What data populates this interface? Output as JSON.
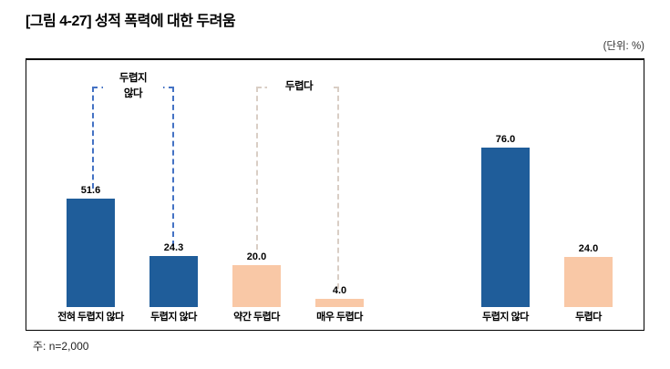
{
  "header": {
    "title": "[그림 4-27] 성적 폭력에 대한 두려움",
    "unit_label": "(단위: %)"
  },
  "footer": {
    "note": "주: n=2,000"
  },
  "colors": {
    "bar_blue": "#1F5D9A",
    "bar_peach": "#F9C8A6",
    "bracket_blue": "#4472C4",
    "bracket_peach": "#D9CEC5"
  },
  "chart_data": {
    "type": "bar",
    "title": "[그림 4-27] 성적 폭력에 대한 두려움",
    "unit": "%",
    "ylim": [
      0,
      100
    ],
    "grid": false,
    "axis_lines": false,
    "note": "주: n=2,000",
    "categories": [
      "전혀 두렵지 않다",
      "두렵지 않다",
      "약간 두렵다",
      "매우 두렵다",
      "두렵지 않다",
      "두렵다"
    ],
    "values": [
      51.6,
      24.3,
      20.0,
      4.0,
      76.0,
      24.0
    ],
    "bars": [
      {
        "category": "전혀 두렵지 않다",
        "value": 51.6,
        "value_label": "51.6",
        "color_key": "blue"
      },
      {
        "category": "두렵지 않다",
        "value": 24.3,
        "value_label": "24.3",
        "color_key": "blue"
      },
      {
        "category": "약간 두렵다",
        "value": 20.0,
        "value_label": "20.0",
        "color_key": "peach"
      },
      {
        "category": "매우 두렵다",
        "value": 4.0,
        "value_label": "4.0",
        "color_key": "peach"
      },
      {
        "category": "두렵지 않다",
        "value": 76.0,
        "value_label": "76.0",
        "color_key": "blue"
      },
      {
        "category": "두렵다",
        "value": 24.0,
        "value_label": "24.0",
        "color_key": "peach"
      }
    ],
    "groups": [
      {
        "label": "두렵지 않다",
        "label_multiline": "두렵지\n않다",
        "bars": [
          "전혀 두렵지 않다",
          "두렵지 않다"
        ],
        "color_key": "blue"
      },
      {
        "label": "두렵다",
        "label_multiline": "두렵다",
        "bars": [
          "약간 두렵다",
          "매우 두렵다"
        ],
        "color_key": "peach"
      }
    ]
  }
}
